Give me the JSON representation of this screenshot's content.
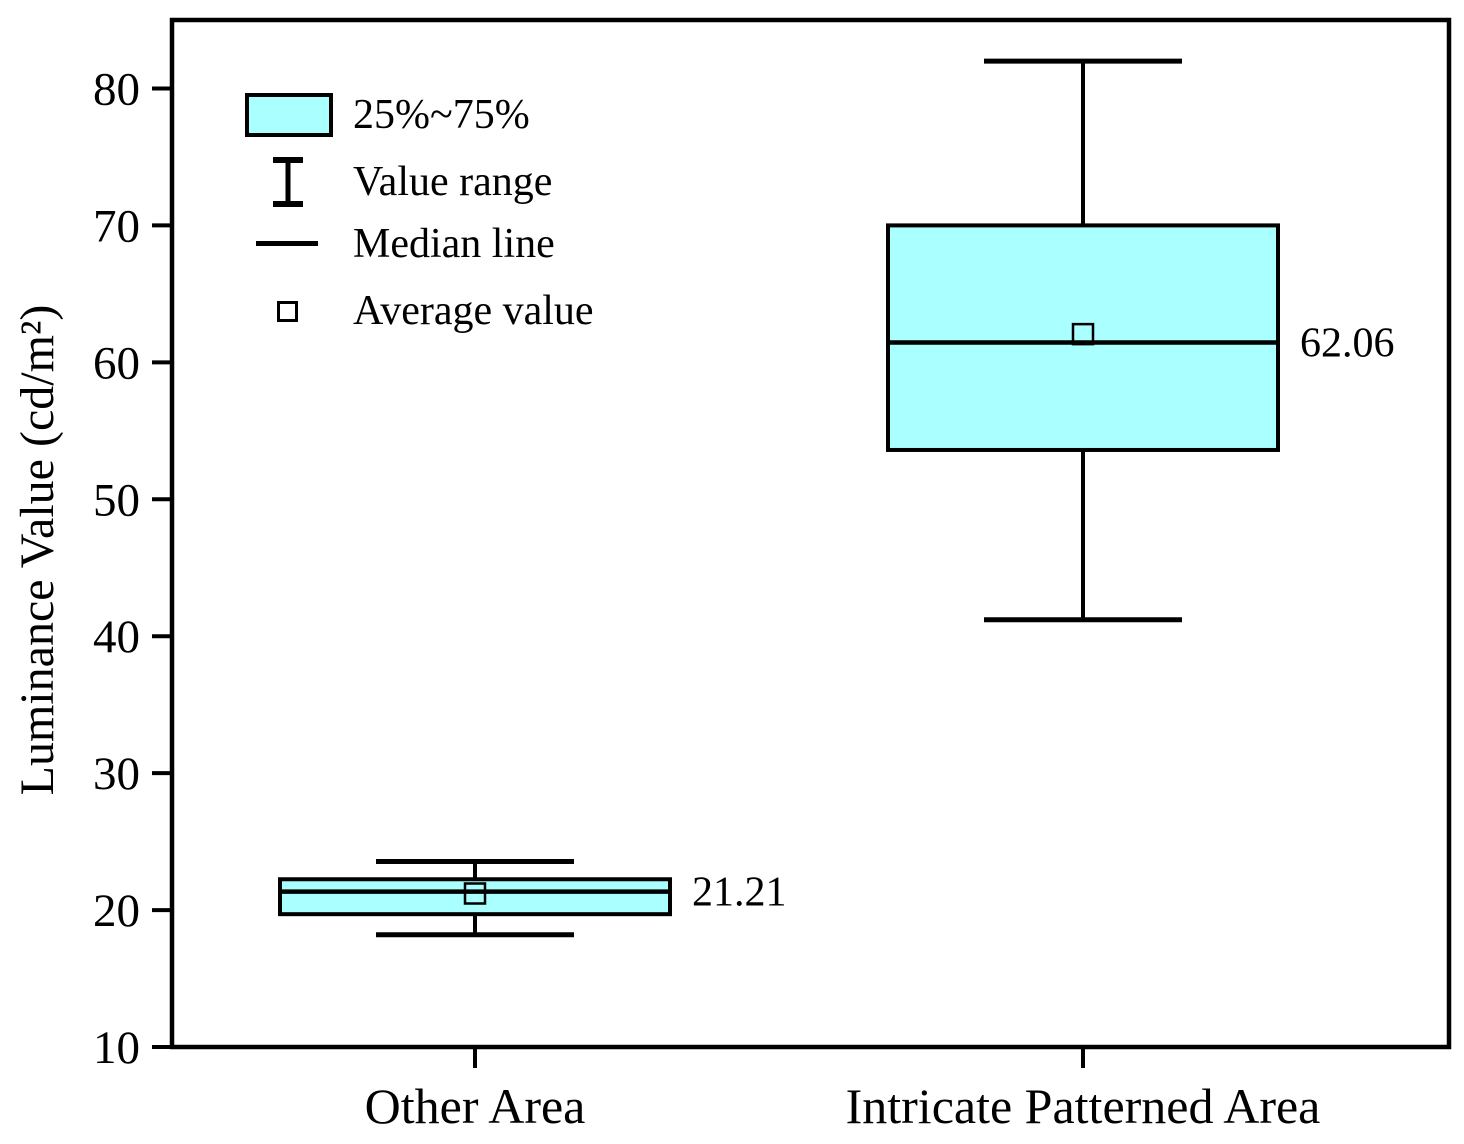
{
  "figure": {
    "background": "#FFFFFF",
    "text_color": "#000000"
  },
  "chart_data": {
    "type": "boxplot",
    "title": "",
    "xlabel": "",
    "ylabel": "Luminance Value (cd/m²)",
    "ylim": [
      10,
      85
    ],
    "yticks": [
      10,
      20,
      30,
      40,
      50,
      60,
      70,
      80
    ],
    "grid": false,
    "legend_position": "top-left",
    "legend_items": [
      {
        "label": "25%~75%"
      },
      {
        "label": "Value range"
      },
      {
        "label": "Median line"
      },
      {
        "label": "Average value"
      }
    ],
    "box_fill": "#AAFFFF",
    "box_border": "#000000",
    "categories": [
      "Other Area",
      "Intricate Patterned Area"
    ],
    "series": [
      {
        "category": "Other Area",
        "min": 18.2,
        "q1": 19.7,
        "median": 21.35,
        "q3": 22.25,
        "max": 23.55,
        "mean": 21.21,
        "mean_label": "21.21"
      },
      {
        "category": "Intricate Patterned Area",
        "min": 41.2,
        "q1": 53.6,
        "median": 61.45,
        "q3": 70,
        "max": 82,
        "mean": 62.06,
        "mean_label": "62.06"
      }
    ]
  }
}
